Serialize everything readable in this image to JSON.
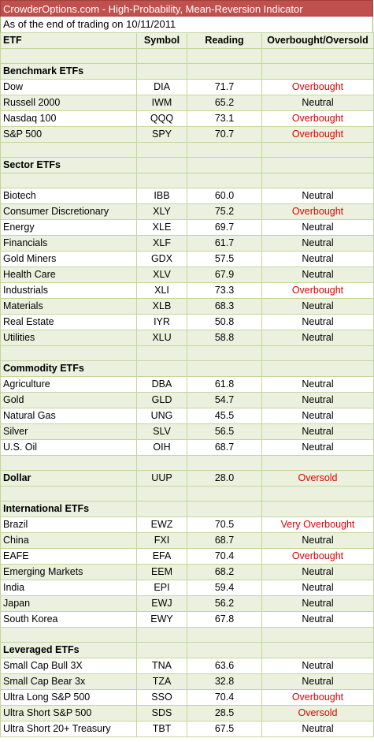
{
  "title": "CrowderOptions.com - High-Probability, Mean-Reversion Indicator",
  "subtitle": "As of the end of trading on 10/11/2011",
  "columns": [
    "ETF",
    "Symbol",
    "Reading",
    "Overbought/Oversold"
  ],
  "colors": {
    "title_bg": "#c0504d",
    "band_bg": "#ebf1de",
    "grid": "#c3d69b",
    "alert": "#e00000"
  },
  "rows": [
    {
      "kind": "spacer"
    },
    {
      "kind": "section",
      "etf": "Benchmark ETFs"
    },
    {
      "kind": "data",
      "etf": "Dow",
      "symbol": "DIA",
      "reading": "71.7",
      "status": "Overbought",
      "alert": true
    },
    {
      "kind": "data",
      "etf": "Russell 2000",
      "symbol": "IWM",
      "reading": "65.2",
      "status": "Neutral",
      "alert": false
    },
    {
      "kind": "data",
      "etf": "Nasdaq 100",
      "symbol": "QQQ",
      "reading": "73.1",
      "status": "Overbought",
      "alert": true
    },
    {
      "kind": "data",
      "etf": "S&P 500",
      "symbol": "SPY",
      "reading": "70.7",
      "status": "Overbought",
      "alert": true
    },
    {
      "kind": "spacer"
    },
    {
      "kind": "section",
      "etf": "Sector ETFs"
    },
    {
      "kind": "spacer"
    },
    {
      "kind": "data",
      "etf": "Biotech",
      "symbol": "IBB",
      "reading": "60.0",
      "status": "Neutral",
      "alert": false
    },
    {
      "kind": "data",
      "etf": "Consumer Discretionary",
      "symbol": "XLY",
      "reading": "75.2",
      "status": "Overbought",
      "alert": true
    },
    {
      "kind": "data",
      "etf": "Energy",
      "symbol": "XLE",
      "reading": "69.7",
      "status": "Neutral",
      "alert": false
    },
    {
      "kind": "data",
      "etf": "Financials",
      "symbol": "XLF",
      "reading": "61.7",
      "status": "Neutral",
      "alert": false
    },
    {
      "kind": "data",
      "etf": "Gold Miners",
      "symbol": "GDX",
      "reading": "57.5",
      "status": "Neutral",
      "alert": false
    },
    {
      "kind": "data",
      "etf": "Health Care",
      "symbol": "XLV",
      "reading": "67.9",
      "status": "Neutral",
      "alert": false
    },
    {
      "kind": "data",
      "etf": "Industrials",
      "symbol": "XLI",
      "reading": "73.3",
      "status": "Overbought",
      "alert": true
    },
    {
      "kind": "data",
      "etf": "Materials",
      "symbol": "XLB",
      "reading": "68.3",
      "status": "Neutral",
      "alert": false
    },
    {
      "kind": "data",
      "etf": "Real Estate",
      "symbol": "IYR",
      "reading": "50.8",
      "status": "Neutral",
      "alert": false
    },
    {
      "kind": "data",
      "etf": "Utilities",
      "symbol": "XLU",
      "reading": "58.8",
      "status": "Neutral",
      "alert": false
    },
    {
      "kind": "spacer"
    },
    {
      "kind": "section",
      "etf": "Commodity ETFs"
    },
    {
      "kind": "data",
      "etf": "Agriculture",
      "symbol": "DBA",
      "reading": "61.8",
      "status": "Neutral",
      "alert": false
    },
    {
      "kind": "data",
      "etf": "Gold",
      "symbol": "GLD",
      "reading": "54.7",
      "status": "Neutral",
      "alert": false
    },
    {
      "kind": "data",
      "etf": "Natural Gas",
      "symbol": "UNG",
      "reading": "45.5",
      "status": "Neutral",
      "alert": false
    },
    {
      "kind": "data",
      "etf": "Silver",
      "symbol": "SLV",
      "reading": "56.5",
      "status": "Neutral",
      "alert": false
    },
    {
      "kind": "data",
      "etf": "U.S. Oil",
      "symbol": "OIH",
      "reading": "68.7",
      "status": "Neutral",
      "alert": false
    },
    {
      "kind": "spacer"
    },
    {
      "kind": "section-data",
      "etf": "Dollar",
      "symbol": "UUP",
      "reading": "28.0",
      "status": "Oversold",
      "alert": true
    },
    {
      "kind": "spacer"
    },
    {
      "kind": "section",
      "etf": "International ETFs"
    },
    {
      "kind": "data",
      "etf": "Brazil",
      "symbol": "EWZ",
      "reading": "70.5",
      "status": "Very Overbought",
      "alert": true
    },
    {
      "kind": "data",
      "etf": "China",
      "symbol": "FXI",
      "reading": "68.7",
      "status": "Neutral",
      "alert": false
    },
    {
      "kind": "data",
      "etf": "EAFE",
      "symbol": "EFA",
      "reading": "70.4",
      "status": "Overbought",
      "alert": true
    },
    {
      "kind": "data",
      "etf": "Emerging Markets",
      "symbol": "EEM",
      "reading": "68.2",
      "status": "Neutral",
      "alert": false
    },
    {
      "kind": "data",
      "etf": "India",
      "symbol": "EPI",
      "reading": "59.4",
      "status": "Neutral",
      "alert": false
    },
    {
      "kind": "data",
      "etf": "Japan",
      "symbol": "EWJ",
      "reading": "56.2",
      "status": "Neutral",
      "alert": false
    },
    {
      "kind": "data",
      "etf": "South Korea",
      "symbol": "EWY",
      "reading": "67.8",
      "status": "Neutral",
      "alert": false
    },
    {
      "kind": "spacer"
    },
    {
      "kind": "section",
      "etf": "Leveraged ETFs"
    },
    {
      "kind": "data",
      "etf": "Small Cap Bull 3X",
      "symbol": "TNA",
      "reading": "63.6",
      "status": "Neutral",
      "alert": false
    },
    {
      "kind": "data",
      "etf": "Small Cap Bear 3x",
      "symbol": "TZA",
      "reading": "32.8",
      "status": "Neutral",
      "alert": false
    },
    {
      "kind": "data",
      "etf": "Ultra Long S&P 500",
      "symbol": "SSO",
      "reading": "70.4",
      "status": "Overbought",
      "alert": true
    },
    {
      "kind": "data",
      "etf": "Ultra Short S&P 500",
      "symbol": "SDS",
      "reading": "28.5",
      "status": "Oversold",
      "alert": true
    },
    {
      "kind": "data",
      "etf": "Ultra Short 20+ Treasury",
      "symbol": "TBT",
      "reading": "67.5",
      "status": "Neutral",
      "alert": false
    }
  ]
}
